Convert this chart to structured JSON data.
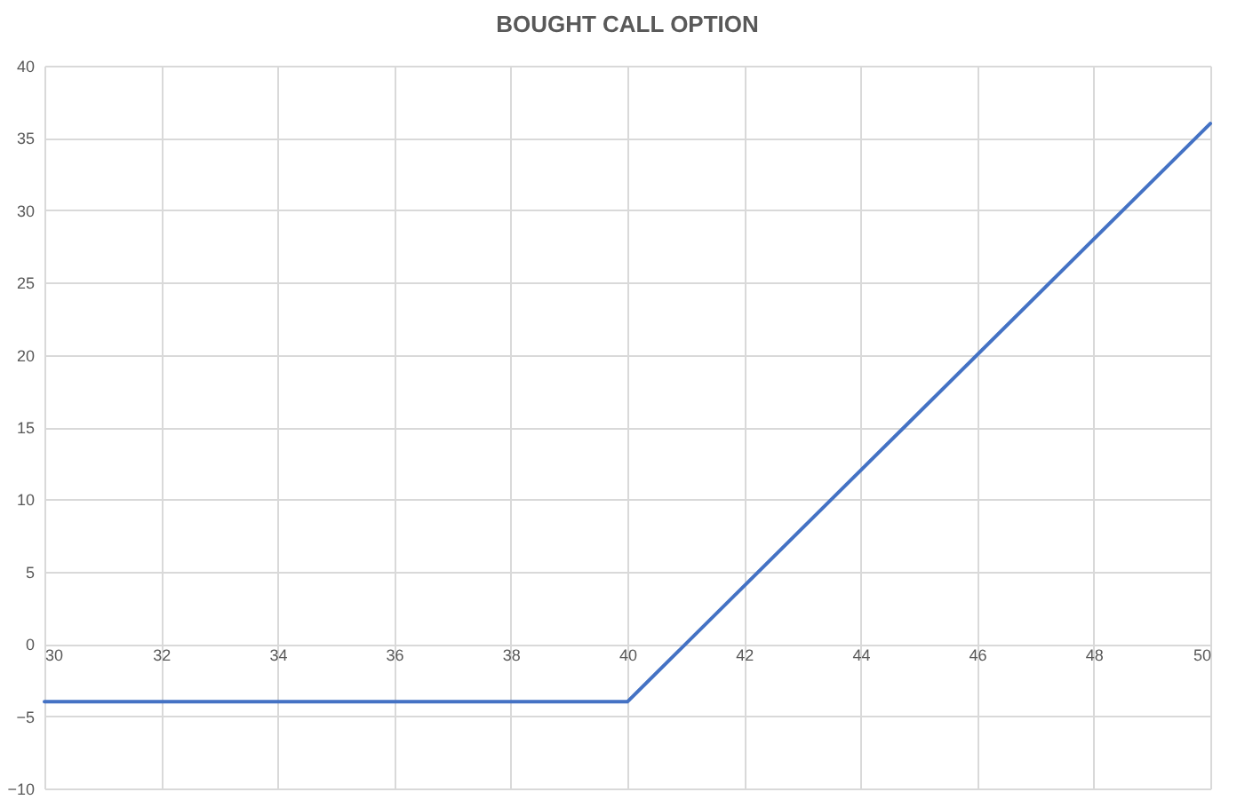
{
  "chart_data": {
    "type": "line",
    "title": "BOUGHT CALL OPTION",
    "x": [
      30,
      40,
      50
    ],
    "series": [
      {
        "color": "#4472c4",
        "values": [
          -4,
          -4,
          36
        ]
      }
    ],
    "xlim": [
      30,
      50
    ],
    "xticks": [
      30,
      32,
      34,
      36,
      38,
      40,
      42,
      44,
      46,
      48,
      50
    ],
    "ylim": [
      -10,
      40
    ],
    "yticks": [
      -10,
      -5,
      0,
      5,
      10,
      15,
      20,
      25,
      30,
      35,
      40
    ],
    "grid": true,
    "marker": "none",
    "line_style": "solid"
  }
}
